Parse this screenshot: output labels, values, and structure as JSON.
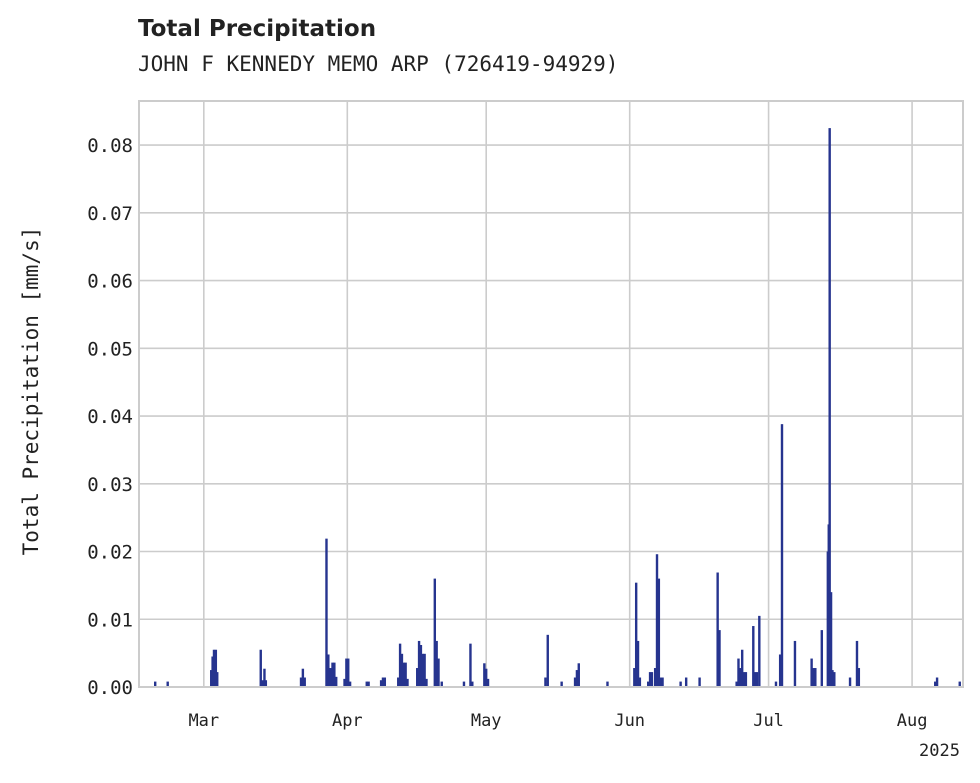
{
  "chart_data": {
    "type": "bar",
    "title": "Total Precipitation",
    "subtitle": "JOHN F KENNEDY MEMO ARP (726419-94929)",
    "ylabel": "Total Precipitation [mm/s]",
    "xlabel": "",
    "ylim": [
      0,
      0.0865
    ],
    "yticks": [
      0.0,
      0.01,
      0.02,
      0.03,
      0.04,
      0.05,
      0.06,
      0.07,
      0.08
    ],
    "ytick_labels": [
      "0.00",
      "0.01",
      "0.02",
      "0.03",
      "0.04",
      "0.05",
      "0.06",
      "0.07",
      "0.08"
    ],
    "xlim_days": [
      -2,
      176
    ],
    "xticks": [
      {
        "label": "Mar",
        "day": 12
      },
      {
        "label": "Apr",
        "day": 43
      },
      {
        "label": "May",
        "day": 73
      },
      {
        "label": "Jun",
        "day": 104
      },
      {
        "label": "Jul",
        "day": 134
      },
      {
        "label": "Aug",
        "day": 165
      }
    ],
    "year_label": "2025",
    "grid": true,
    "bar_color": "#26348f",
    "points": [
      {
        "day": 1.5,
        "value": 0.0008
      },
      {
        "day": 4.2,
        "value": 0.0008
      },
      {
        "day": 13.6,
        "value": 0.0025
      },
      {
        "day": 13.9,
        "value": 0.0045
      },
      {
        "day": 14.2,
        "value": 0.0055
      },
      {
        "day": 14.6,
        "value": 0.0055
      },
      {
        "day": 14.9,
        "value": 0.0022
      },
      {
        "day": 24.3,
        "value": 0.0055
      },
      {
        "day": 24.7,
        "value": 0.001
      },
      {
        "day": 25.1,
        "value": 0.0027
      },
      {
        "day": 25.4,
        "value": 0.001
      },
      {
        "day": 33.0,
        "value": 0.0014
      },
      {
        "day": 33.4,
        "value": 0.0027
      },
      {
        "day": 33.8,
        "value": 0.0014
      },
      {
        "day": 38.5,
        "value": 0.0219
      },
      {
        "day": 38.9,
        "value": 0.0048
      },
      {
        "day": 39.4,
        "value": 0.0028
      },
      {
        "day": 39.8,
        "value": 0.0036
      },
      {
        "day": 40.2,
        "value": 0.0036
      },
      {
        "day": 40.6,
        "value": 0.0015
      },
      {
        "day": 42.4,
        "value": 0.0012
      },
      {
        "day": 42.8,
        "value": 0.0042
      },
      {
        "day": 43.2,
        "value": 0.0042
      },
      {
        "day": 43.6,
        "value": 0.0008
      },
      {
        "day": 47.2,
        "value": 0.0008
      },
      {
        "day": 47.6,
        "value": 0.0008
      },
      {
        "day": 50.3,
        "value": 0.001
      },
      {
        "day": 50.7,
        "value": 0.0014
      },
      {
        "day": 51.1,
        "value": 0.0014
      },
      {
        "day": 54.0,
        "value": 0.0014
      },
      {
        "day": 54.4,
        "value": 0.0064
      },
      {
        "day": 54.8,
        "value": 0.0049
      },
      {
        "day": 55.2,
        "value": 0.0036
      },
      {
        "day": 55.6,
        "value": 0.0036
      },
      {
        "day": 56.0,
        "value": 0.0012
      },
      {
        "day": 58.1,
        "value": 0.0028
      },
      {
        "day": 58.5,
        "value": 0.0068
      },
      {
        "day": 58.9,
        "value": 0.0062
      },
      {
        "day": 59.3,
        "value": 0.0049
      },
      {
        "day": 59.7,
        "value": 0.0049
      },
      {
        "day": 60.1,
        "value": 0.0012
      },
      {
        "day": 61.9,
        "value": 0.016
      },
      {
        "day": 62.3,
        "value": 0.0068
      },
      {
        "day": 62.7,
        "value": 0.0042
      },
      {
        "day": 63.4,
        "value": 0.0008
      },
      {
        "day": 68.2,
        "value": 0.0008
      },
      {
        "day": 69.6,
        "value": 0.0064
      },
      {
        "day": 70.0,
        "value": 0.0008
      },
      {
        "day": 72.6,
        "value": 0.0035
      },
      {
        "day": 73.0,
        "value": 0.0027
      },
      {
        "day": 73.4,
        "value": 0.0012
      },
      {
        "day": 85.8,
        "value": 0.0014
      },
      {
        "day": 86.3,
        "value": 0.0077
      },
      {
        "day": 89.3,
        "value": 0.0008
      },
      {
        "day": 92.2,
        "value": 0.0014
      },
      {
        "day": 92.6,
        "value": 0.0025
      },
      {
        "day": 93.0,
        "value": 0.0035
      },
      {
        "day": 99.2,
        "value": 0.0008
      },
      {
        "day": 105.0,
        "value": 0.0028
      },
      {
        "day": 105.4,
        "value": 0.0154
      },
      {
        "day": 105.8,
        "value": 0.0068
      },
      {
        "day": 106.2,
        "value": 0.0014
      },
      {
        "day": 108.0,
        "value": 0.0008
      },
      {
        "day": 108.4,
        "value": 0.0022
      },
      {
        "day": 108.8,
        "value": 0.0022
      },
      {
        "day": 109.5,
        "value": 0.0028
      },
      {
        "day": 109.9,
        "value": 0.0196
      },
      {
        "day": 110.3,
        "value": 0.016
      },
      {
        "day": 110.7,
        "value": 0.0014
      },
      {
        "day": 111.1,
        "value": 0.0014
      },
      {
        "day": 115.0,
        "value": 0.0008
      },
      {
        "day": 116.2,
        "value": 0.0014
      },
      {
        "day": 119.1,
        "value": 0.0014
      },
      {
        "day": 123.0,
        "value": 0.0169
      },
      {
        "day": 123.4,
        "value": 0.0084
      },
      {
        "day": 127.1,
        "value": 0.0008
      },
      {
        "day": 127.5,
        "value": 0.0042
      },
      {
        "day": 127.9,
        "value": 0.0028
      },
      {
        "day": 128.3,
        "value": 0.0055
      },
      {
        "day": 128.7,
        "value": 0.0022
      },
      {
        "day": 129.1,
        "value": 0.0022
      },
      {
        "day": 130.7,
        "value": 0.009
      },
      {
        "day": 131.1,
        "value": 0.0022
      },
      {
        "day": 131.5,
        "value": 0.0022
      },
      {
        "day": 132.0,
        "value": 0.0105
      },
      {
        "day": 135.6,
        "value": 0.0008
      },
      {
        "day": 136.5,
        "value": 0.0048
      },
      {
        "day": 136.9,
        "value": 0.0388
      },
      {
        "day": 139.7,
        "value": 0.0068
      },
      {
        "day": 143.3,
        "value": 0.0042
      },
      {
        "day": 143.7,
        "value": 0.0028
      },
      {
        "day": 144.1,
        "value": 0.0028
      },
      {
        "day": 145.5,
        "value": 0.0084
      },
      {
        "day": 146.8,
        "value": 0.02
      },
      {
        "day": 147.0,
        "value": 0.024
      },
      {
        "day": 147.2,
        "value": 0.0825
      },
      {
        "day": 147.5,
        "value": 0.014
      },
      {
        "day": 147.8,
        "value": 0.0025
      },
      {
        "day": 148.2,
        "value": 0.0022
      },
      {
        "day": 151.6,
        "value": 0.0014
      },
      {
        "day": 153.1,
        "value": 0.0068
      },
      {
        "day": 153.5,
        "value": 0.0028
      },
      {
        "day": 170.0,
        "value": 0.0008
      },
      {
        "day": 170.4,
        "value": 0.0014
      },
      {
        "day": 175.3,
        "value": 0.0008
      }
    ]
  }
}
